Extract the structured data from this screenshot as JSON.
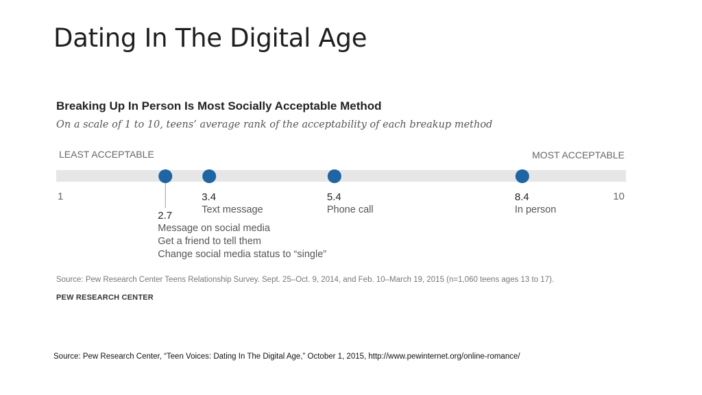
{
  "slide": {
    "title": "Dating In The Digital Age",
    "source": "Source: Pew Research Center, “Teen Voices: Dating In The Digital Age,” October 1, 2015, http://www.pewinternet.org/online-romance/"
  },
  "chart_data": {
    "type": "scatter",
    "title": "Breaking Up In Person Is Most Socially Acceptable Method",
    "subtitle": "On a scale of 1 to 10, teens’ average rank of the acceptability of each breakup method",
    "scale_left_label": "LEAST ACCEPTABLE",
    "scale_right_label": "MOST ACCEPTABLE",
    "xlim": [
      1,
      10
    ],
    "tick_labels": [
      "1",
      "10"
    ],
    "points": [
      {
        "value": 2.7,
        "value_label": "2.7",
        "labels": [
          "Message on social media",
          "Get a friend to tell them",
          "Change social media status to “single”"
        ]
      },
      {
        "value": 3.4,
        "value_label": "3.4",
        "labels": [
          "Text message"
        ]
      },
      {
        "value": 5.4,
        "value_label": "5.4",
        "labels": [
          "Phone call"
        ]
      },
      {
        "value": 8.4,
        "value_label": "8.4",
        "labels": [
          "In person"
        ]
      }
    ],
    "colors": {
      "track": "#e6e6e6",
      "point": "#1f64a3"
    },
    "source": "Source:  Pew Research Center Teens Relationship Survey. Sept. 25–Oct. 9, 2014, and Feb. 10–March 19, 2015 (n=1,060 teens ages 13 to 17).",
    "brand": "PEW RESEARCH CENTER"
  }
}
